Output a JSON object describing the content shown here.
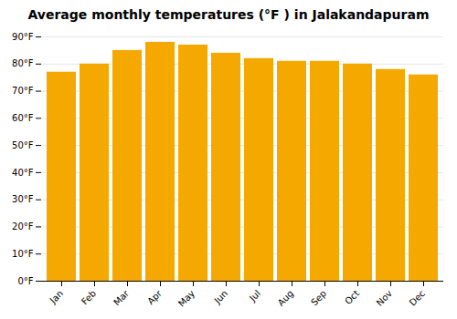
{
  "chart_data": {
    "type": "bar",
    "title": "Average monthly temperatures (°F ) in Jalakandapuram",
    "categories": [
      "Jan",
      "Feb",
      "Mar",
      "Apr",
      "May",
      "Jun",
      "Jul",
      "Aug",
      "Sep",
      "Oct",
      "Nov",
      "Dec"
    ],
    "values": [
      77,
      80,
      85,
      88,
      87,
      84,
      82,
      81,
      81,
      80,
      78,
      76
    ],
    "color": "#F5A800",
    "ylim": [
      0,
      90
    ],
    "yticks": [
      {
        "value": 0,
        "label": "0°F"
      },
      {
        "value": 10,
        "label": "10°F"
      },
      {
        "value": 20,
        "label": "20°F"
      },
      {
        "value": 30,
        "label": "30°F"
      },
      {
        "value": 40,
        "label": "40°F"
      },
      {
        "value": 50,
        "label": "50°F"
      },
      {
        "value": 60,
        "label": "60°F"
      },
      {
        "value": 70,
        "label": "70°F"
      },
      {
        "value": 80,
        "label": "80°F"
      },
      {
        "value": 90,
        "label": "90°F"
      }
    ],
    "grid": true
  }
}
